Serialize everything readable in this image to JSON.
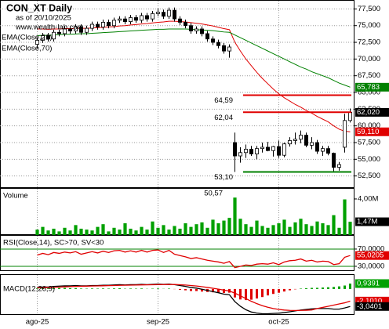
{
  "header": {
    "subtitle": "as of 20/10/2025",
    "site": "www.wealth-lab.com"
  },
  "chart_data": [
    {
      "type": "candlestick",
      "title": "CON_XT Daily",
      "xlim": [
        -0.5,
        57.5
      ],
      "xticks": [
        {
          "value": 0,
          "label": "ago-25"
        },
        {
          "value": 22,
          "label": "sep-25"
        },
        {
          "value": 44,
          "label": "oct-25"
        }
      ],
      "ylim": [
        50700,
        78600
      ],
      "yticks": [
        {
          "value": 77500,
          "label": "77,500"
        },
        {
          "value": 75000,
          "label": "75,000"
        },
        {
          "value": 72500,
          "label": "72,500"
        },
        {
          "value": 70000,
          "label": "70,000"
        },
        {
          "value": 67500,
          "label": "67,500"
        },
        {
          "value": 65000,
          "label": "65,000"
        },
        {
          "value": 62500,
          "label": "62,500"
        },
        {
          "value": 60000,
          "label": "60,000"
        },
        {
          "value": 57500,
          "label": "57,500"
        },
        {
          "value": 55000,
          "label": "55,000"
        },
        {
          "value": 52500,
          "label": "52,500"
        }
      ],
      "grid": true,
      "open": [
        72200,
        72800,
        73500,
        73000,
        74000,
        73800,
        74500,
        74200,
        74800,
        74000,
        74600,
        75200,
        74800,
        75500,
        75000,
        75800,
        76000,
        75600,
        76200,
        75800,
        76500,
        76000,
        76800,
        77000,
        76400,
        77300,
        76000,
        75500,
        75000,
        74200,
        74500,
        73800,
        73000,
        72500,
        72000,
        71200,
        57500,
        55500,
        56000,
        56500,
        55800,
        56600,
        56800,
        56300,
        56900,
        55600,
        57300,
        57800,
        58000,
        58600,
        57100,
        57500,
        56200,
        56600,
        55900,
        53800,
        56800,
        60800
      ],
      "high": [
        73200,
        73900,
        73900,
        74400,
        74400,
        74900,
        74900,
        75200,
        75200,
        75000,
        75600,
        75600,
        75900,
        75900,
        76200,
        76400,
        76400,
        76600,
        76600,
        76900,
        76900,
        77200,
        77600,
        77400,
        77700,
        77700,
        76400,
        75900,
        75400,
        74900,
        74900,
        74200,
        73400,
        72900,
        72400,
        72200,
        59000,
        56800,
        57200,
        57000,
        57000,
        57500,
        57600,
        57000,
        57800,
        57500,
        58300,
        59000,
        59300,
        59000,
        58300,
        57900,
        57000,
        57000,
        56000,
        54600,
        61800,
        62600
      ],
      "low": [
        71600,
        72400,
        72600,
        72600,
        73400,
        73400,
        73800,
        73800,
        73600,
        73600,
        74200,
        74400,
        74400,
        74600,
        74600,
        75400,
        75200,
        75200,
        75400,
        75400,
        75600,
        75600,
        76400,
        76000,
        76000,
        75600,
        75100,
        74600,
        73800,
        73800,
        73400,
        72600,
        72100,
        71600,
        70800,
        70200,
        53100,
        54500,
        55200,
        55500,
        55000,
        56000,
        56200,
        55400,
        55200,
        55300,
        56900,
        57200,
        57400,
        56800,
        56500,
        55800,
        55500,
        55600,
        53200,
        53300,
        56000,
        60500
      ],
      "close": [
        72800,
        73500,
        73000,
        74000,
        73800,
        74500,
        74200,
        74800,
        74000,
        74600,
        75200,
        74800,
        75500,
        75000,
        75800,
        76000,
        75600,
        76200,
        75800,
        76500,
        76000,
        76800,
        77000,
        76400,
        77300,
        76000,
        75500,
        75000,
        74200,
        74500,
        73800,
        73000,
        72500,
        72000,
        71200,
        71800,
        55500,
        56000,
        56500,
        55800,
        56600,
        56800,
        56300,
        56900,
        55600,
        57300,
        57800,
        58000,
        58600,
        57100,
        57500,
        56200,
        56600,
        55900,
        53800,
        54200,
        60800,
        62020
      ],
      "series": [
        {
          "name": "EMA(Close,21)",
          "color": "#e00000",
          "values": [
            74500,
            74500,
            74450,
            74500,
            74500,
            74550,
            74550,
            74600,
            74600,
            74600,
            74650,
            74700,
            74750,
            74800,
            74850,
            74950,
            75000,
            75100,
            75150,
            75250,
            75300,
            75400,
            75500,
            75550,
            75650,
            75650,
            75600,
            75550,
            75450,
            75350,
            75250,
            75100,
            74950,
            74750,
            74550,
            74400,
            72500,
            71200,
            70000,
            69000,
            68000,
            67100,
            66300,
            65500,
            64800,
            64200,
            63700,
            63200,
            62800,
            62300,
            61900,
            61400,
            61000,
            60600,
            60000,
            59500,
            59200,
            59110
          ]
        },
        {
          "name": "EMA(Close,70)",
          "color": "#008000",
          "values": [
            73500,
            73550,
            73550,
            73600,
            73650,
            73700,
            73700,
            73750,
            73800,
            73800,
            73850,
            73900,
            73950,
            74000,
            74050,
            74100,
            74150,
            74200,
            74250,
            74300,
            74350,
            74400,
            74450,
            74450,
            74500,
            74500,
            74500,
            74500,
            74450,
            74400,
            74350,
            74300,
            74250,
            74150,
            74050,
            74000,
            73600,
            73200,
            72800,
            72400,
            72000,
            71600,
            71200,
            70800,
            70400,
            70000,
            69600,
            69200,
            68800,
            68500,
            68100,
            67800,
            67500,
            67200,
            66800,
            66400,
            66100,
            65783
          ]
        }
      ],
      "levels": [
        {
          "label": "64,59",
          "value": 64590,
          "color": "#e00000"
        },
        {
          "label": "62,04",
          "value": 62040,
          "color": "#e00000"
        },
        {
          "label": "53,10",
          "value": 53100,
          "color": "#008000"
        }
      ],
      "last_values": [
        {
          "value": 65783,
          "label": "65,783",
          "color": "#008000"
        },
        {
          "value": 62020,
          "label": "62,020",
          "color": "#000000"
        },
        {
          "value": 59110,
          "label": "59,110",
          "color": "#e00000"
        }
      ]
    },
    {
      "type": "bar",
      "title": "Volume",
      "ylim": [
        0,
        5040000
      ],
      "yticks": [
        {
          "value": 4000000,
          "label": "4,00M"
        }
      ],
      "color": "#00a000",
      "values": [
        600000,
        900000,
        500000,
        700000,
        400000,
        800000,
        500000,
        1100000,
        700000,
        600000,
        500000,
        900000,
        1200000,
        400000,
        800000,
        600000,
        1300000,
        700000,
        500000,
        900000,
        600000,
        1500000,
        800000,
        1100000,
        600000,
        1000000,
        700000,
        1300000,
        900000,
        1200000,
        1400000,
        800000,
        1700000,
        1300000,
        1600000,
        1900000,
        4150000,
        1800000,
        1200000,
        900000,
        1600000,
        1000000,
        800000,
        1100000,
        1300000,
        1700000,
        900000,
        1400000,
        1800000,
        1200000,
        1000000,
        1500000,
        1300000,
        1100000,
        2200000,
        800000,
        3950000,
        1470000
      ],
      "annotation": "50,57",
      "last_values": [
        {
          "value": 1470000,
          "label": "1,47M",
          "color": "#000000"
        }
      ]
    },
    {
      "type": "line",
      "title": "RSI(Close,14), SC>70, SV<30",
      "ylim": [
        19,
        99
      ],
      "yticks": [
        {
          "value": 70,
          "label": "70,0000"
        },
        {
          "value": 30,
          "label": "30,0000"
        }
      ],
      "tick_color": "#008000",
      "series": [
        {
          "color": "#e00000",
          "values": [
            56,
            60,
            57,
            62,
            60,
            63,
            61,
            64,
            58,
            61,
            64,
            61,
            65,
            62,
            66,
            67,
            63,
            66,
            63,
            67,
            63,
            67,
            68,
            62,
            67,
            58,
            55,
            52,
            48,
            50,
            47,
            44,
            42,
            40,
            37,
            41,
            27,
            30,
            33,
            32,
            35,
            36,
            35,
            38,
            34,
            40,
            43,
            44,
            47,
            42,
            44,
            40,
            42,
            41,
            34,
            36,
            51,
            55.0205
          ]
        }
      ],
      "last_values": [
        {
          "value": 55.0205,
          "label": "55,0205",
          "color": "#e00000"
        }
      ]
    },
    {
      "type": "line",
      "title": "MACD(12,26,9)",
      "ylim": [
        -4.5,
        2.3
      ],
      "series": [
        {
          "color": "#000000",
          "values": [
            0.3,
            0.35,
            0.35,
            0.45,
            0.5,
            0.55,
            0.55,
            0.6,
            0.55,
            0.55,
            0.6,
            0.6,
            0.65,
            0.65,
            0.7,
            0.75,
            0.7,
            0.75,
            0.75,
            0.8,
            0.75,
            0.8,
            0.85,
            0.8,
            0.85,
            0.75,
            0.6,
            0.45,
            0.25,
            0.15,
            -0.05,
            -0.25,
            -0.45,
            -0.65,
            -0.9,
            -1.0,
            -2.2,
            -3.0,
            -3.6,
            -4.0,
            -4.2,
            -4.3,
            -4.3,
            -4.25,
            -4.2,
            -4.1,
            -3.95,
            -3.8,
            -3.65,
            -3.55,
            -3.45,
            -3.4,
            -3.4,
            -3.4,
            -3.5,
            -3.5,
            -3.3,
            -3.0401
          ]
        },
        {
          "color": "#e00000",
          "values": [
            0.2,
            0.23,
            0.25,
            0.29,
            0.33,
            0.37,
            0.41,
            0.45,
            0.47,
            0.49,
            0.51,
            0.53,
            0.56,
            0.58,
            0.6,
            0.63,
            0.65,
            0.67,
            0.69,
            0.71,
            0.72,
            0.74,
            0.76,
            0.77,
            0.78,
            0.78,
            0.74,
            0.68,
            0.6,
            0.51,
            0.4,
            0.27,
            0.13,
            -0.03,
            -0.2,
            -0.36,
            -0.73,
            -1.18,
            -1.67,
            -2.14,
            -2.55,
            -2.9,
            -3.18,
            -3.39,
            -3.55,
            -3.66,
            -3.72,
            -3.74,
            -3.72,
            -3.69,
            -3.64,
            -3.4,
            -3.2,
            -3.0,
            -2.8,
            -2.6,
            -2.4,
            -2.101
          ]
        }
      ],
      "histogram": {
        "up_color": "#00a000",
        "down_color": "#e00000",
        "values": [
          0.1,
          0.12,
          0.1,
          0.16,
          0.17,
          0.18,
          0.14,
          0.15,
          0.08,
          0.06,
          0.09,
          0.07,
          0.09,
          0.07,
          0.1,
          0.12,
          0.05,
          0.08,
          0.06,
          0.09,
          0.03,
          0.06,
          0.09,
          0.03,
          0.07,
          -0.03,
          -0.14,
          -0.23,
          -0.35,
          -0.36,
          -0.45,
          -0.52,
          -0.58,
          -0.62,
          -0.7,
          -0.64,
          -1.47,
          -1.82,
          -1.93,
          -1.86,
          -1.65,
          -1.4,
          -1.12,
          -0.86,
          -0.65,
          -0.44,
          -0.23,
          -0.06,
          0.07,
          0.14,
          0.19,
          0.2,
          0.25,
          0.3,
          0.35,
          0.45,
          0.6,
          0.9391
        ]
      },
      "last_values": [
        {
          "value": 0.9391,
          "label": "0,9391",
          "color": "#00a000"
        },
        {
          "value": -2.101,
          "label": "-2,1010",
          "color": "#e00000"
        },
        {
          "value": -3.0401,
          "label": "-3,0401",
          "color": "#000000"
        }
      ]
    }
  ]
}
